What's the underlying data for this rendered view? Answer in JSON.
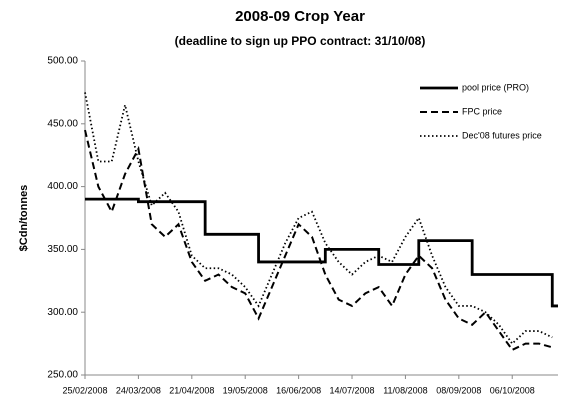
{
  "chart_data": {
    "type": "line",
    "title": "2008-09 Crop Year",
    "subtitle": "(deadline to sign up PPO contract: 31/10/08)",
    "y_label": "$Cdn/tonnes",
    "x": [
      "25/02/2008",
      "03/03/2008",
      "10/03/2008",
      "17/03/2008",
      "24/03/2008",
      "31/03/2008",
      "07/04/2008",
      "14/04/2008",
      "21/04/2008",
      "28/04/2008",
      "05/05/2008",
      "12/05/2008",
      "19/05/2008",
      "26/05/2008",
      "02/06/2008",
      "09/06/2008",
      "16/06/2008",
      "23/06/2008",
      "30/06/2008",
      "07/07/2008",
      "14/07/2008",
      "21/07/2008",
      "28/07/2008",
      "04/08/2008",
      "11/08/2008",
      "18/08/2008",
      "25/08/2008",
      "01/09/2008",
      "08/09/2008",
      "15/09/2008",
      "22/09/2008",
      "29/09/2008",
      "06/10/2008",
      "13/10/2008",
      "20/10/2008",
      "27/10/2008"
    ],
    "xlim": [
      "25/02/2008",
      "30/10/2008"
    ],
    "xticks": [
      "25/02/2008",
      "24/03/2008",
      "21/04/2008",
      "19/05/2008",
      "16/06/2008",
      "14/07/2008",
      "11/08/2008",
      "08/09/2008",
      "06/10/2008"
    ],
    "ylim": [
      250,
      500
    ],
    "yticks": [
      {
        "value": 250,
        "label": "250.00"
      },
      {
        "value": 300,
        "label": "300.00"
      },
      {
        "value": 350,
        "label": "350.00"
      },
      {
        "value": 400,
        "label": "400.00"
      },
      {
        "value": 450,
        "label": "450.00"
      },
      {
        "value": 500,
        "label": "500.00"
      }
    ],
    "legend": "upper right",
    "series": [
      {
        "name": "pool price (PRO)",
        "color": "#000000",
        "style": "solid",
        "drawstyle": "steps-post",
        "values": [
          390,
          390,
          390,
          390,
          388,
          388,
          388,
          388,
          388,
          362,
          362,
          362,
          362,
          340,
          340,
          340,
          340,
          340,
          350,
          350,
          350,
          350,
          338,
          338,
          338,
          357,
          357,
          357,
          357,
          330,
          330,
          330,
          330,
          330,
          330,
          305
        ]
      },
      {
        "name": "FPC price",
        "color": "#000000",
        "style": "dashed",
        "values": [
          445,
          400,
          380,
          410,
          430,
          370,
          360,
          370,
          340,
          325,
          330,
          320,
          315,
          295,
          320,
          345,
          370,
          360,
          330,
          310,
          305,
          315,
          320,
          305,
          330,
          345,
          335,
          310,
          295,
          290,
          300,
          285,
          270,
          275,
          275,
          272
        ]
      },
      {
        "name": "Dec'08 futures price",
        "color": "#000000",
        "style": "dotted",
        "values": [
          475,
          420,
          420,
          465,
          420,
          385,
          395,
          380,
          345,
          335,
          335,
          330,
          320,
          305,
          330,
          355,
          375,
          380,
          355,
          340,
          330,
          340,
          345,
          340,
          360,
          375,
          345,
          320,
          305,
          305,
          300,
          290,
          275,
          285,
          285,
          280
        ]
      }
    ]
  }
}
